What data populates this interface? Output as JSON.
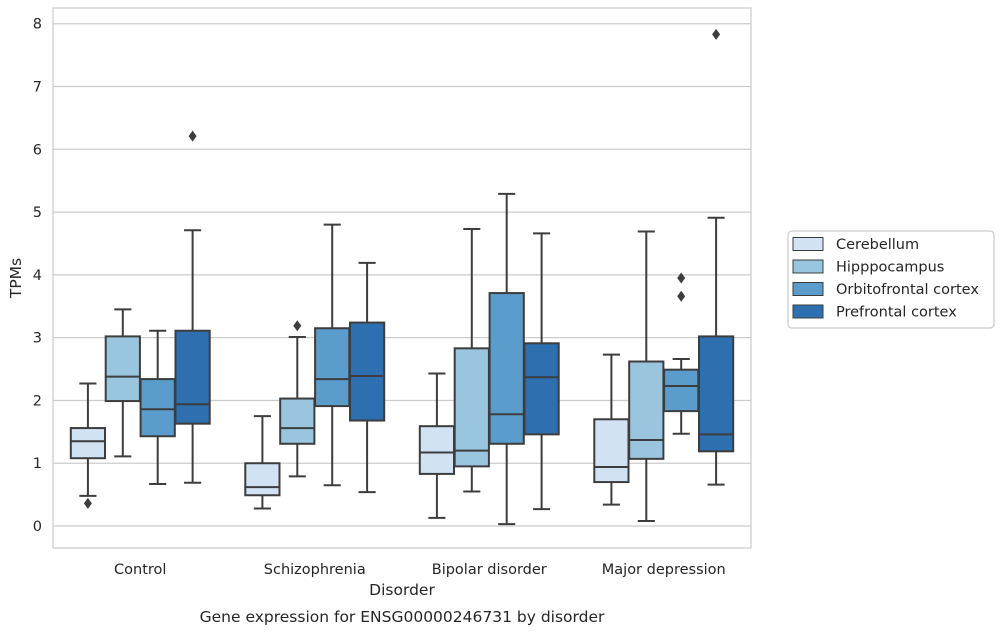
{
  "chart_data": {
    "type": "box",
    "xlabel": "Disorder",
    "ylabel": "TPMs",
    "caption": "Gene expression for ENSG00000246731 by disorder",
    "ylim": [
      -0.35,
      8.25
    ],
    "yticks": [
      "0",
      "1",
      "2",
      "3",
      "4",
      "5",
      "6",
      "7",
      "8"
    ],
    "grid": true,
    "legend_position": "right",
    "categories": [
      "Control",
      "Schizophrenia",
      "Bipolar disorder",
      "Major depression"
    ],
    "series": [
      {
        "name": "Cerebellum",
        "color": "#d1e2f2",
        "boxes": [
          {
            "whislo": 0.48,
            "q1": 1.08,
            "med": 1.35,
            "q3": 1.56,
            "whishi": 2.27,
            "fliers": [
              0.36
            ]
          },
          {
            "whislo": 0.28,
            "q1": 0.49,
            "med": 0.62,
            "q3": 1.0,
            "whishi": 1.75,
            "fliers": []
          },
          {
            "whislo": 0.13,
            "q1": 0.83,
            "med": 1.17,
            "q3": 1.59,
            "whishi": 2.43,
            "fliers": []
          },
          {
            "whislo": 0.34,
            "q1": 0.7,
            "med": 0.94,
            "q3": 1.7,
            "whishi": 2.73,
            "fliers": []
          }
        ]
      },
      {
        "name": "Hipppocampus",
        "color": "#9ac5df",
        "boxes": [
          {
            "whislo": 1.11,
            "q1": 1.99,
            "med": 2.38,
            "q3": 3.02,
            "whishi": 3.45,
            "fliers": []
          },
          {
            "whislo": 0.79,
            "q1": 1.31,
            "med": 1.56,
            "q3": 2.03,
            "whishi": 3.01,
            "fliers": [
              3.19
            ]
          },
          {
            "whislo": 0.55,
            "q1": 0.95,
            "med": 1.2,
            "q3": 2.83,
            "whishi": 4.73,
            "fliers": []
          },
          {
            "whislo": 0.08,
            "q1": 1.07,
            "med": 1.37,
            "q3": 2.62,
            "whishi": 4.69,
            "fliers": []
          }
        ]
      },
      {
        "name": "Orbitofrontal cortex",
        "color": "#5a9ccb",
        "boxes": [
          {
            "whislo": 0.67,
            "q1": 1.43,
            "med": 1.86,
            "q3": 2.34,
            "whishi": 3.11,
            "fliers": []
          },
          {
            "whislo": 0.65,
            "q1": 1.91,
            "med": 2.34,
            "q3": 3.15,
            "whishi": 4.8,
            "fliers": []
          },
          {
            "whislo": 0.03,
            "q1": 1.31,
            "med": 1.78,
            "q3": 3.71,
            "whishi": 5.29,
            "fliers": []
          },
          {
            "whislo": 1.47,
            "q1": 1.83,
            "med": 2.23,
            "q3": 2.49,
            "whishi": 2.66,
            "fliers": [
              3.66,
              3.95
            ]
          }
        ]
      },
      {
        "name": "Prefrontal cortex",
        "color": "#2d6faf",
        "boxes": [
          {
            "whislo": 0.69,
            "q1": 1.63,
            "med": 1.94,
            "q3": 3.11,
            "whishi": 4.71,
            "fliers": [
              6.21
            ]
          },
          {
            "whislo": 0.54,
            "q1": 1.68,
            "med": 2.39,
            "q3": 3.24,
            "whishi": 4.19,
            "fliers": []
          },
          {
            "whislo": 0.27,
            "q1": 1.46,
            "med": 2.37,
            "q3": 2.91,
            "whishi": 4.66,
            "fliers": []
          },
          {
            "whislo": 0.66,
            "q1": 1.19,
            "med": 1.46,
            "q3": 3.02,
            "whishi": 4.91,
            "fliers": [
              7.83
            ]
          }
        ]
      }
    ]
  }
}
